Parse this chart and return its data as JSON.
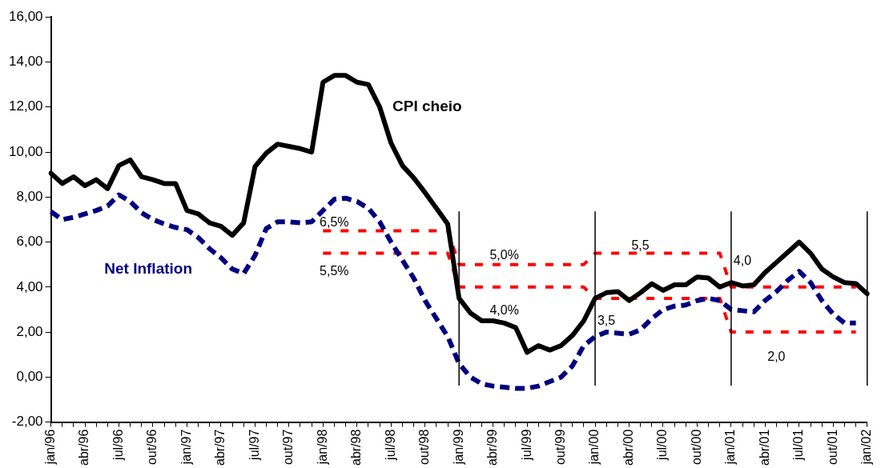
{
  "chart_data": {
    "type": "line",
    "categories": [
      "jan/96",
      null,
      null,
      "abr/96",
      null,
      null,
      "jul/96",
      null,
      null,
      "out/96",
      null,
      null,
      "jan/97",
      null,
      null,
      "abr/97",
      null,
      null,
      "jul/97",
      null,
      null,
      "out/97",
      null,
      null,
      "jan/98",
      null,
      null,
      "abr/98",
      null,
      null,
      "jul/98",
      null,
      null,
      "out/98",
      null,
      null,
      "jan/99",
      null,
      null,
      "abr/99",
      null,
      null,
      "jul/99",
      null,
      null,
      "out/99",
      null,
      null,
      "jan/00",
      null,
      null,
      "abr/00",
      null,
      null,
      "jul/00",
      null,
      null,
      "out/00",
      null,
      null,
      "jan/01",
      null,
      null,
      "abr/01",
      null,
      null,
      "jul/01",
      null,
      null,
      "out/01",
      null,
      null,
      "jan/02"
    ],
    "series": [
      {
        "name": "CPI cheio",
        "color": "#000000",
        "line_style": "solid",
        "values": [
          9.06,
          8.6,
          8.9,
          8.5,
          8.77,
          8.37,
          9.4,
          9.65,
          8.9,
          8.77,
          8.6,
          8.6,
          7.4,
          7.25,
          6.85,
          6.7,
          6.3,
          6.85,
          9.35,
          9.95,
          10.35,
          10.25,
          10.15,
          10.0,
          13.1,
          13.4,
          13.4,
          13.1,
          13.0,
          12.0,
          10.4,
          9.4,
          8.85,
          8.2,
          7.5,
          6.8,
          3.5,
          2.85,
          2.5,
          2.5,
          2.4,
          2.2,
          1.1,
          1.4,
          1.2,
          1.4,
          1.85,
          2.5,
          3.5,
          3.75,
          3.8,
          3.4,
          3.75,
          4.15,
          3.85,
          4.1,
          4.1,
          4.45,
          4.4,
          4.0,
          4.2,
          4.05,
          4.1,
          4.65,
          5.1,
          5.55,
          6.0,
          5.5,
          4.8,
          4.45,
          4.2,
          4.15,
          3.7
        ]
      },
      {
        "name": "Net Inflation",
        "color": "#000080",
        "line_style": "dashed",
        "values": [
          7.35,
          7.0,
          7.1,
          7.25,
          7.4,
          7.6,
          8.1,
          7.8,
          7.3,
          7.0,
          6.8,
          6.65,
          6.55,
          6.2,
          5.7,
          5.3,
          4.8,
          4.6,
          5.4,
          6.6,
          6.9,
          6.9,
          6.85,
          6.9,
          7.4,
          7.9,
          7.95,
          7.8,
          7.5,
          6.9,
          6.0,
          5.2,
          4.4,
          3.4,
          2.6,
          1.8,
          0.6,
          0.0,
          -0.3,
          -0.4,
          -0.45,
          -0.5,
          -0.5,
          -0.4,
          -0.2,
          0.0,
          0.5,
          1.4,
          1.8,
          2.0,
          1.95,
          1.9,
          2.1,
          2.6,
          3.0,
          3.15,
          3.2,
          3.4,
          3.5,
          3.4,
          3.0,
          2.95,
          2.9,
          3.4,
          3.8,
          4.3,
          4.7,
          4.2,
          3.4,
          2.8,
          2.4,
          2.4,
          null
        ]
      },
      {
        "color": "#ff0000",
        "line_style": "dotted",
        "values": [
          null,
          null,
          null,
          null,
          null,
          null,
          null,
          null,
          null,
          null,
          null,
          null,
          null,
          null,
          null,
          null,
          null,
          null,
          null,
          null,
          null,
          null,
          null,
          null,
          6.5,
          6.5,
          6.5,
          6.5,
          6.5,
          6.5,
          6.5,
          6.5,
          6.5,
          6.5,
          6.5,
          6.5,
          5.0,
          5.0,
          5.0,
          5.0,
          5.0,
          5.0,
          5.0,
          5.0,
          5.0,
          5.0,
          5.0,
          5.0,
          5.5,
          5.5,
          5.5,
          5.5,
          5.5,
          5.5,
          5.5,
          5.5,
          5.5,
          5.5,
          5.5,
          5.5,
          4.0,
          4.0,
          4.0,
          4.0,
          4.0,
          4.0,
          4.0,
          4.0,
          4.0,
          4.0,
          4.0,
          4.0,
          null
        ]
      },
      {
        "color": "#ff0000",
        "line_style": "dotted",
        "values": [
          null,
          null,
          null,
          null,
          null,
          null,
          null,
          null,
          null,
          null,
          null,
          null,
          null,
          null,
          null,
          null,
          null,
          null,
          null,
          null,
          null,
          null,
          null,
          null,
          5.5,
          5.5,
          5.5,
          5.5,
          5.5,
          5.5,
          5.5,
          5.5,
          5.5,
          5.5,
          5.5,
          5.5,
          4.0,
          4.0,
          4.0,
          4.0,
          4.0,
          4.0,
          4.0,
          4.0,
          4.0,
          4.0,
          4.0,
          4.0,
          3.5,
          3.5,
          3.5,
          3.5,
          3.5,
          3.5,
          3.5,
          3.5,
          3.5,
          3.5,
          3.5,
          3.5,
          2.0,
          2.0,
          2.0,
          2.0,
          2.0,
          2.0,
          2.0,
          2.0,
          2.0,
          2.0,
          2.0,
          2.0,
          null
        ]
      }
    ],
    "ylim": [
      -2,
      16
    ],
    "yticks": [
      {
        "value": -2,
        "label": "-2,00"
      },
      {
        "value": 0,
        "label": "0,00"
      },
      {
        "value": 2,
        "label": "2,00"
      },
      {
        "value": 4,
        "label": "4,00"
      },
      {
        "value": 6,
        "label": "6,00"
      },
      {
        "value": 8,
        "label": "8,00"
      },
      {
        "value": 10,
        "label": "10,00"
      },
      {
        "value": 12,
        "label": "12,00"
      },
      {
        "value": 14,
        "label": "14,00"
      },
      {
        "value": 16,
        "label": "16,00"
      }
    ],
    "ref_lines": [
      {
        "axis": "x",
        "value": "jan/99",
        "color": "#000000"
      },
      {
        "axis": "x",
        "value": "jan/00",
        "color": "#000000"
      },
      {
        "axis": "x",
        "value": "jan/01",
        "color": "#000000"
      },
      {
        "axis": "x",
        "value": "jan/02",
        "color": "#000000"
      }
    ],
    "annotations": [
      {
        "text": "6,5%",
        "x": "jan/98",
        "y": 6.5
      },
      {
        "text": "5,5%",
        "x": "jan/98",
        "y": 5.5
      },
      {
        "text": "5,0%",
        "x": "abr/99",
        "y": 5.0
      },
      {
        "text": "4,0%",
        "x": "abr/99",
        "y": 4.0
      },
      {
        "text": "5,5",
        "x": "abr/00",
        "y": 5.5
      },
      {
        "text": "3,5",
        "x": "jan/00",
        "y": 3.5
      },
      {
        "text": "4,0",
        "x": "jan/01",
        "y": 4.0
      },
      {
        "text": "2,0",
        "x": "abr/01",
        "y": 2.0
      }
    ],
    "grid": false,
    "legend": false,
    "marker": "none"
  }
}
